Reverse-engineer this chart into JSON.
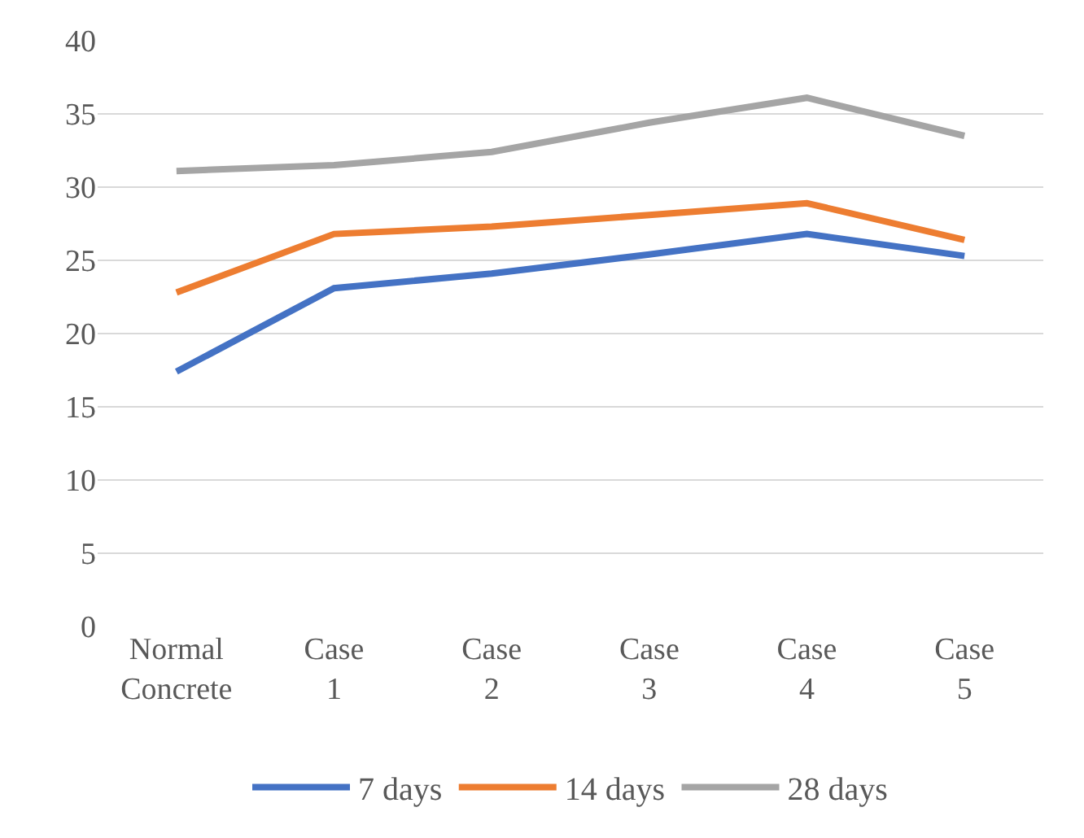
{
  "chart_data": {
    "type": "line",
    "categories": [
      "Normal Concrete",
      "Case 1",
      "Case 2",
      "Case 3",
      "Case 4",
      "Case 5"
    ],
    "series": [
      {
        "name": "7 days",
        "color": "#4472c4",
        "values": [
          17.4,
          23.1,
          24.1,
          25.4,
          26.8,
          25.3
        ]
      },
      {
        "name": "14 days",
        "color": "#ed7d31",
        "values": [
          22.8,
          26.8,
          27.3,
          28.1,
          28.9,
          26.4
        ]
      },
      {
        "name": "28 days",
        "color": "#a5a5a5",
        "values": [
          31.1,
          31.5,
          32.4,
          34.4,
          36.1,
          33.5
        ]
      }
    ],
    "ylim": [
      0,
      40
    ],
    "yticks": [
      0,
      5,
      10,
      15,
      20,
      25,
      30,
      35,
      40
    ],
    "grid": "y",
    "legend": "bottom",
    "marker": "none",
    "line_style": "solid"
  }
}
